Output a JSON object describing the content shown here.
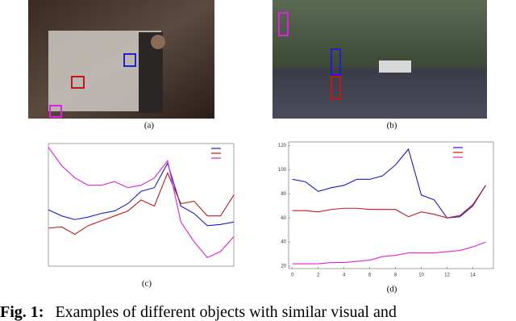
{
  "panels": [
    "(a)",
    "(b)",
    "(c)",
    "(d)"
  ],
  "caption": {
    "label": "Fig. 1:",
    "text": "Examples of different objects with similar visual and"
  },
  "chart_data": [
    {
      "type": "line",
      "xlim": [
        0,
        14
      ],
      "ylim": [
        0,
        100
      ],
      "x": [
        0,
        1,
        2,
        3,
        4,
        5,
        6,
        7,
        8,
        9,
        10,
        11,
        12,
        13,
        14
      ],
      "series": [
        {
          "color": "#1a1ad0",
          "values": [
            46,
            41,
            38,
            40,
            43,
            45,
            51,
            61,
            64,
            84,
            49,
            43,
            33,
            34,
            36
          ]
        },
        {
          "color": "#c81818",
          "values": [
            31,
            32,
            26,
            33,
            37,
            41,
            45,
            54,
            49,
            76,
            51,
            53,
            41,
            41,
            58
          ]
        },
        {
          "color": "#e020e0",
          "values": [
            97,
            82,
            72,
            66,
            66,
            69,
            64,
            66,
            72,
            86,
            36,
            20,
            7,
            12,
            24
          ]
        }
      ]
    },
    {
      "type": "line",
      "xlim": [
        -0.3,
        15.6
      ],
      "ylim": [
        18,
        123
      ],
      "xticks": [
        0,
        2,
        4,
        6,
        8,
        10,
        12,
        14
      ],
      "yticks": [
        20,
        40,
        60,
        80,
        100,
        120
      ],
      "x": [
        0,
        1,
        2,
        3,
        4,
        5,
        6,
        7,
        8,
        9,
        10,
        11,
        12,
        13,
        14,
        15
      ],
      "series": [
        {
          "color": "#1a1ad0",
          "values": [
            92,
            90,
            82,
            85,
            87,
            92,
            92,
            95,
            104,
            117,
            79,
            75,
            60,
            61,
            70,
            87
          ]
        },
        {
          "color": "#c81818",
          "values": [
            66,
            66,
            65,
            67,
            68,
            68,
            67,
            67,
            67,
            61,
            65,
            63,
            60,
            62,
            71,
            87
          ]
        },
        {
          "color": "#e020e0",
          "values": [
            22,
            22,
            22,
            23,
            23,
            24,
            25,
            28,
            29,
            31,
            31,
            31,
            32,
            33,
            36,
            40
          ]
        }
      ]
    }
  ]
}
